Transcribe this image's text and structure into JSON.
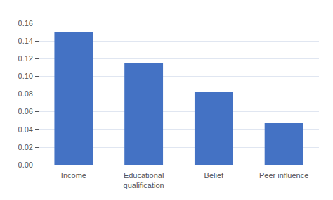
{
  "chart_data": {
    "type": "bar",
    "categories": [
      "Income",
      "Educational\nqualification",
      "Belief",
      "Peer influence"
    ],
    "values": [
      0.15,
      0.115,
      0.082,
      0.047
    ],
    "color": "#4472C4",
    "ylim": [
      0,
      0.17
    ],
    "yticks": [
      {
        "value": 0,
        "label": "0.00"
      },
      0.02,
      0.04,
      0.06,
      0.08,
      {
        "value": 0.1,
        "label": "0.10"
      },
      0.12,
      0.14,
      0.16
    ],
    "grid": true
  }
}
